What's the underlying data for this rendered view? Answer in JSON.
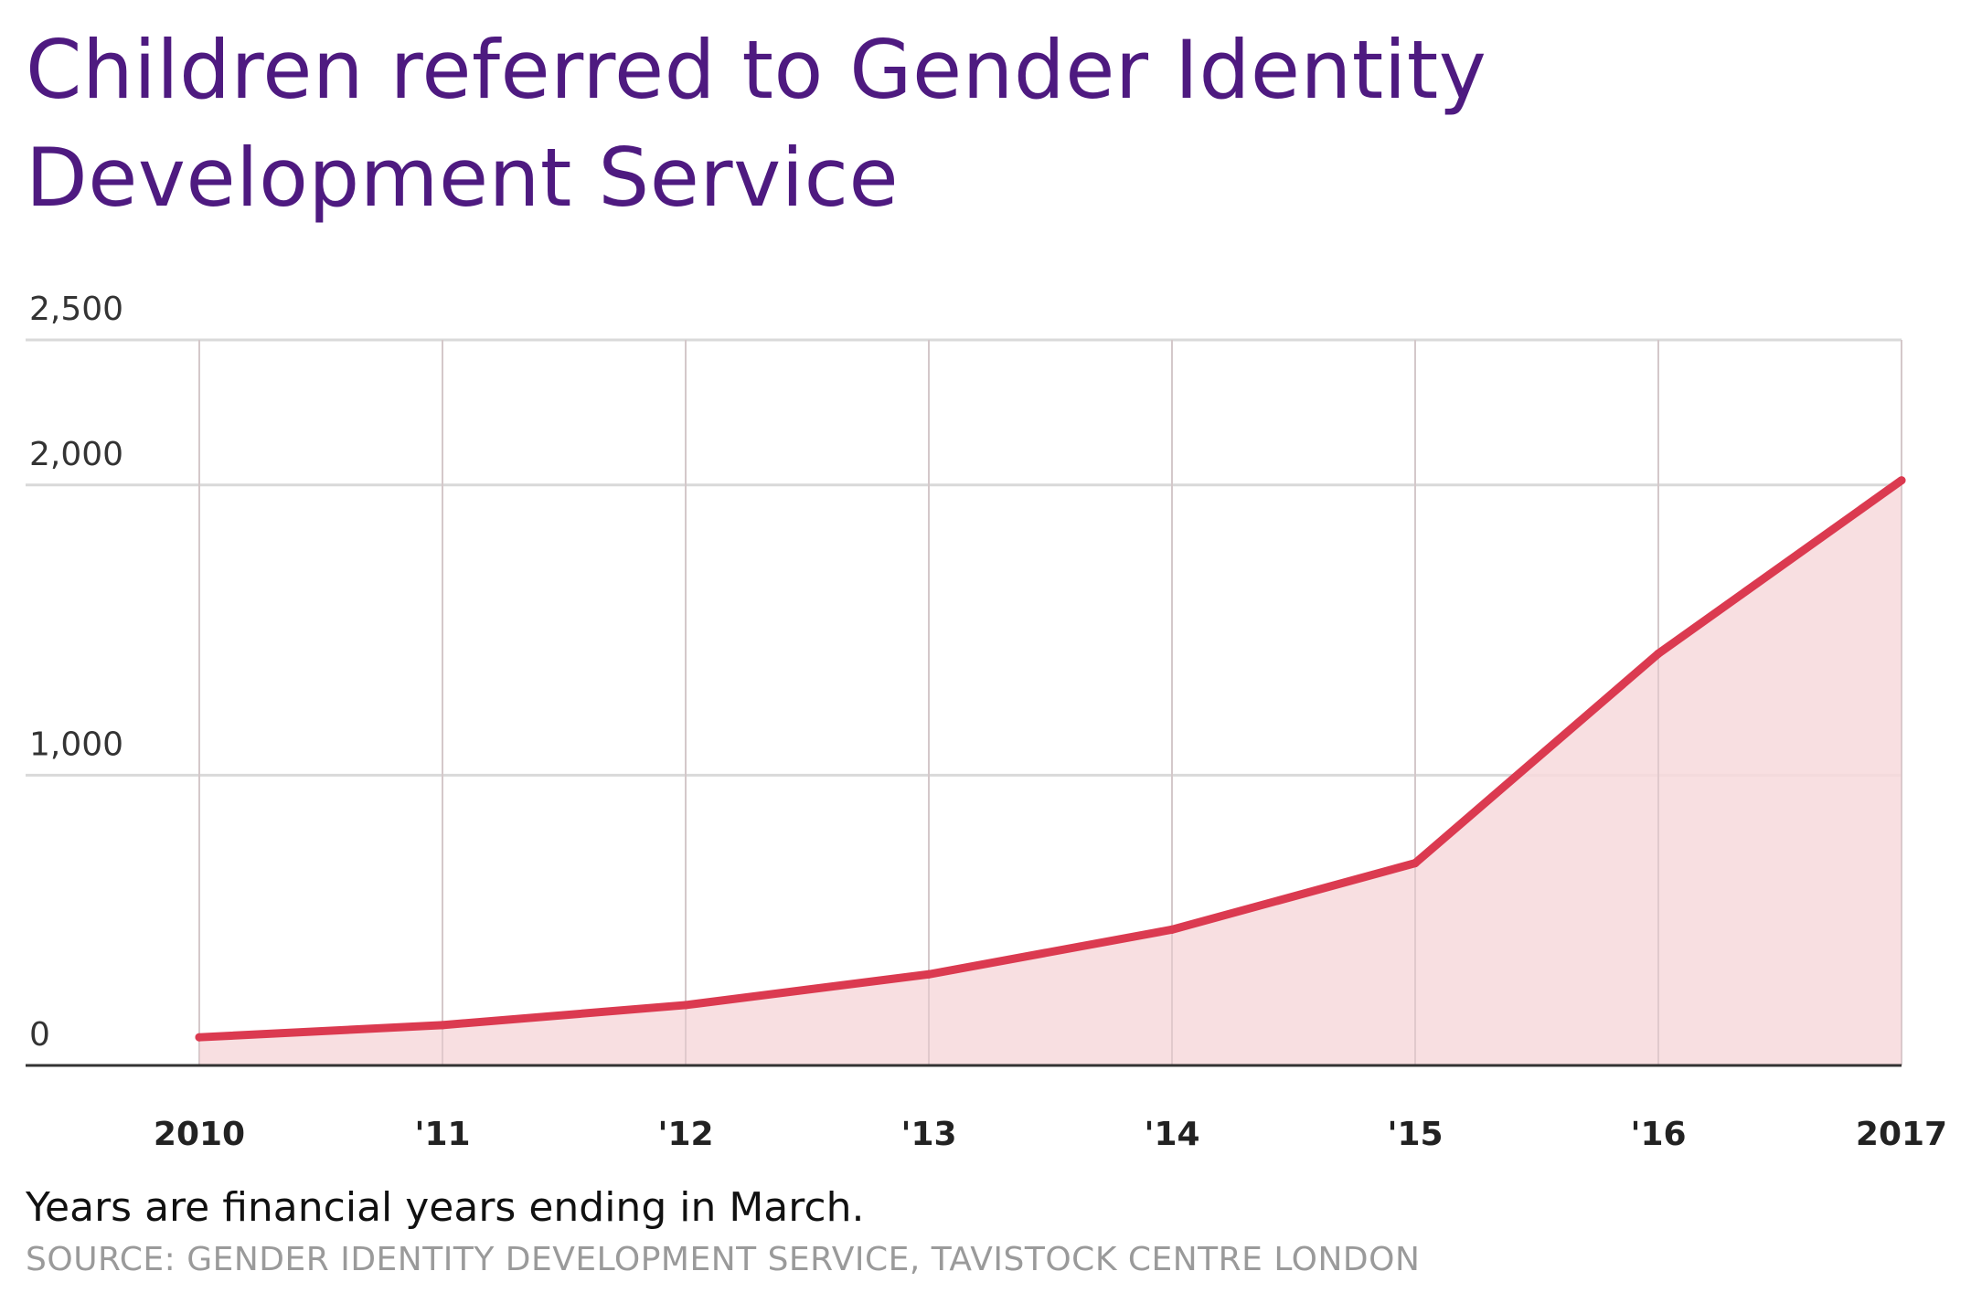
{
  "title": "Children referred to Gender Identity Development Service",
  "note": "Years are financial years ending in March.",
  "source": "SOURCE: GENDER IDENTITY DEVELOPMENT SERVICE, TAVISTOCK CENTRE LONDON",
  "colors": {
    "title": "#4e1a80",
    "line": "#db3a50",
    "fill": "#f7d9dc",
    "grid": "#d9d9d9",
    "axis": "#333333"
  },
  "chart_data": {
    "type": "area",
    "title": "Children referred to Gender Identity Development Service",
    "categories": [
      "2010",
      "'11",
      "'12",
      "'13",
      "'14",
      "'15",
      "'16",
      "2017"
    ],
    "values": [
      97,
      139,
      208,
      314,
      468,
      697,
      1419,
      2016
    ],
    "ylim": [
      0,
      2500
    ],
    "yticks": [
      0,
      1000,
      2000,
      2500
    ],
    "ytick_labels": [
      "0",
      "1,000",
      "2,000",
      "2,500"
    ],
    "grid": true,
    "xlabel": "",
    "ylabel": ""
  }
}
